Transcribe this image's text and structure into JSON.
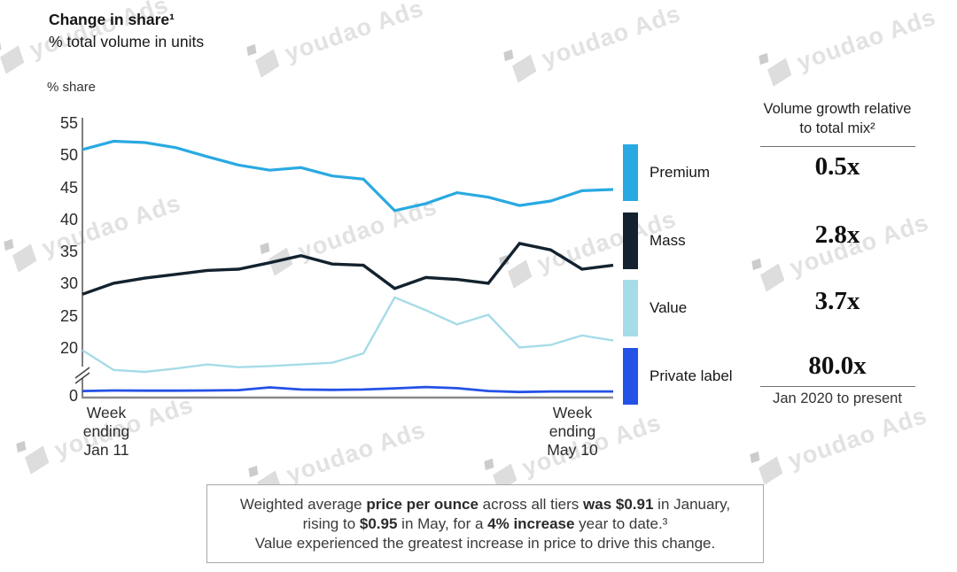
{
  "title": "Change in share¹",
  "subtitle": "% total volume in units",
  "watermark": {
    "text": "youdao Ads"
  },
  "chart_data": {
    "type": "line",
    "title": "Change in share¹",
    "subtitle": "% total volume in units",
    "ylabel": "% share",
    "yticks": [
      55,
      50,
      45,
      40,
      35,
      30,
      25,
      20,
      0
    ],
    "axis_break_between": [
      0,
      20
    ],
    "grid": false,
    "x_axis": "18 weekly points, week ending Jan 11 to week ending May 10",
    "x_first_label": [
      "Week",
      "ending",
      "Jan 11"
    ],
    "x_last_label": [
      "Week",
      "ending",
      "May 10"
    ],
    "series": [
      {
        "name": "Premium",
        "color": "#29A9E2",
        "values": [
          51.0,
          52.3,
          52.1,
          51.3,
          49.9,
          48.6,
          47.8,
          48.2,
          46.9,
          46.4,
          41.5,
          42.6,
          44.3,
          43.6,
          42.3,
          43.0,
          44.6,
          44.8
        ]
      },
      {
        "name": "Mass",
        "color": "#13222E",
        "values": [
          28.5,
          30.2,
          31.0,
          31.6,
          32.2,
          32.4,
          33.4,
          34.5,
          33.2,
          33.0,
          29.4,
          31.1,
          30.8,
          30.2,
          36.4,
          35.4,
          32.4,
          33.0
        ]
      },
      {
        "name": "Value",
        "color": "#A6DCE7",
        "values": [
          19.8,
          13.8,
          12.8,
          14.5,
          16.6,
          15.2,
          15.8,
          16.6,
          17.5,
          19.3,
          28.0,
          26.0,
          23.8,
          25.3,
          20.2,
          20.6,
          22.1,
          21.3
        ]
      },
      {
        "name": "Private label",
        "color": "#2451E6",
        "values": [
          2.9,
          3.2,
          3.1,
          3.1,
          3.2,
          3.4,
          4.8,
          3.7,
          3.5,
          3.7,
          4.3,
          5.0,
          4.4,
          2.9,
          2.4,
          2.7,
          2.7,
          2.7
        ]
      }
    ]
  },
  "growth": {
    "header": "Volume growth relative to total mix²",
    "values": [
      "0.5x",
      "2.8x",
      "3.7x",
      "80.0x"
    ],
    "caption": "Jan 2020 to present"
  },
  "note": {
    "lines": [
      [
        {
          "t": "Weighted average "
        },
        {
          "t": "price per ounce",
          "b": true
        },
        {
          "t": " across all tiers "
        },
        {
          "t": "was $0.91",
          "b": true
        },
        {
          "t": " in January,"
        }
      ],
      [
        {
          "t": "rising to "
        },
        {
          "t": "$0.95",
          "b": true
        },
        {
          "t": " in May, for a "
        },
        {
          "t": "4% increase",
          "b": true
        },
        {
          "t": " year to date.³"
        }
      ],
      [
        {
          "t": "Value experienced the greatest increase in price to drive this change."
        }
      ]
    ]
  }
}
